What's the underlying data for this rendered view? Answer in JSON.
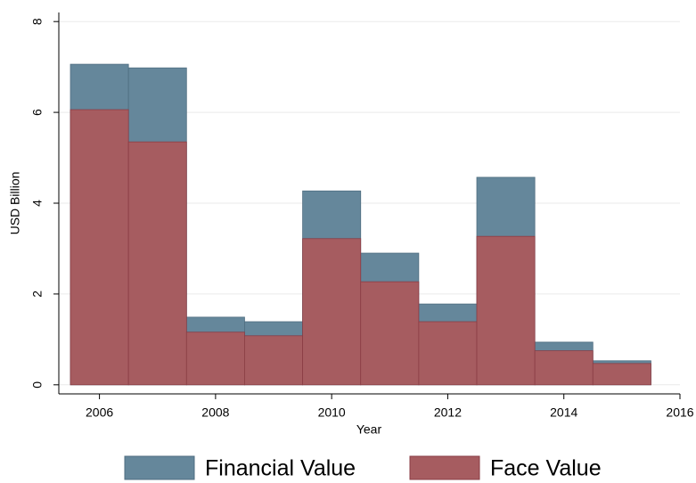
{
  "chart_data": {
    "type": "bar",
    "x": [
      2006,
      2007,
      2008,
      2009,
      2010,
      2011,
      2012,
      2013,
      2014,
      2015
    ],
    "series": [
      {
        "name": "Financial Value",
        "color": "#65879b",
        "values": [
          7.06,
          6.98,
          1.49,
          1.39,
          4.27,
          2.9,
          1.78,
          4.57,
          0.94,
          0.53
        ]
      },
      {
        "name": "Face Value",
        "color": "#a65c60",
        "values": [
          6.06,
          5.35,
          1.16,
          1.08,
          3.22,
          2.27,
          1.39,
          3.27,
          0.75,
          0.47
        ]
      }
    ],
    "xlabel": "Year",
    "ylabel": "USD Billion",
    "xlim": [
      2005.3,
      2016
    ],
    "xticks": [
      2006,
      2008,
      2010,
      2012,
      2014,
      2016
    ],
    "ylim": [
      -0.2,
      8.2
    ],
    "yticks": [
      0,
      2,
      4,
      6,
      8
    ],
    "grid": true,
    "legend": "bottom"
  }
}
